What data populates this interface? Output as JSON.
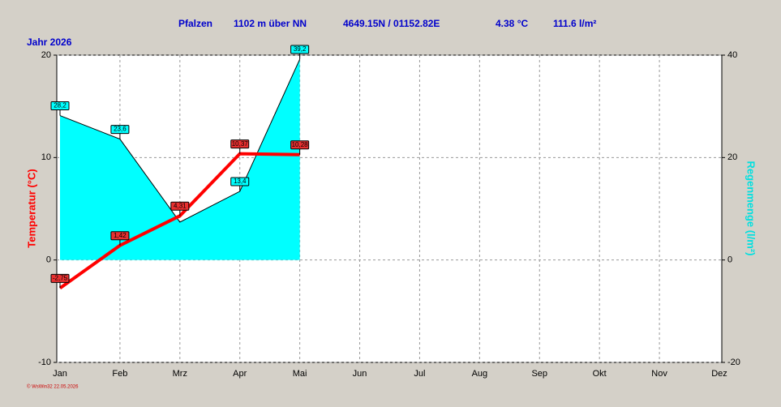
{
  "chart_data": {
    "type": "line",
    "header": [
      "Pfalzen",
      "1102 m über NN",
      "4649.15N / 01152.82E",
      "4.38 °C",
      "111.6 l/m²"
    ],
    "subtitle": "Jahr 2026",
    "footer": "© WsWin32  22.05.2026",
    "y_label": "Temperatur  (°C)",
    "y2_label": "Regenmenge  (l/m²)",
    "categories": [
      "Jan",
      "Feb",
      "Mrz",
      "Apr",
      "Mai",
      "Jun",
      "Jul",
      "Aug",
      "Sep",
      "Okt",
      "Nov",
      "Dez"
    ],
    "series": [
      {
        "name": "Regenmenge",
        "kind": "area",
        "axis": "y2",
        "color": "#00ffff",
        "values": [
          28.2,
          23.6,
          7.4,
          13.4,
          39.2,
          null,
          null,
          null,
          null,
          null,
          null,
          null
        ],
        "value_labels": [
          "28,2",
          "23,6",
          null,
          "13,4",
          "39,2",
          null,
          null,
          null,
          null,
          null,
          null,
          null
        ]
      },
      {
        "name": "Temperatur",
        "kind": "line",
        "color": "#ff0000",
        "values": [
          -2.75,
          1.42,
          4.31,
          10.37,
          10.28,
          null,
          null,
          null,
          null,
          null,
          null,
          null
        ],
        "value_labels": [
          "-2,75",
          "1,42",
          "4,31",
          "10,37",
          "10,28",
          null,
          null,
          null,
          null,
          null,
          null,
          null
        ]
      }
    ],
    "ylim": [
      -10,
      20
    ],
    "yticks": [
      -10,
      0,
      10,
      20
    ],
    "y2lim": [
      -20,
      40
    ],
    "y2ticks": [
      -20,
      0,
      20,
      40
    ],
    "grid": true
  }
}
